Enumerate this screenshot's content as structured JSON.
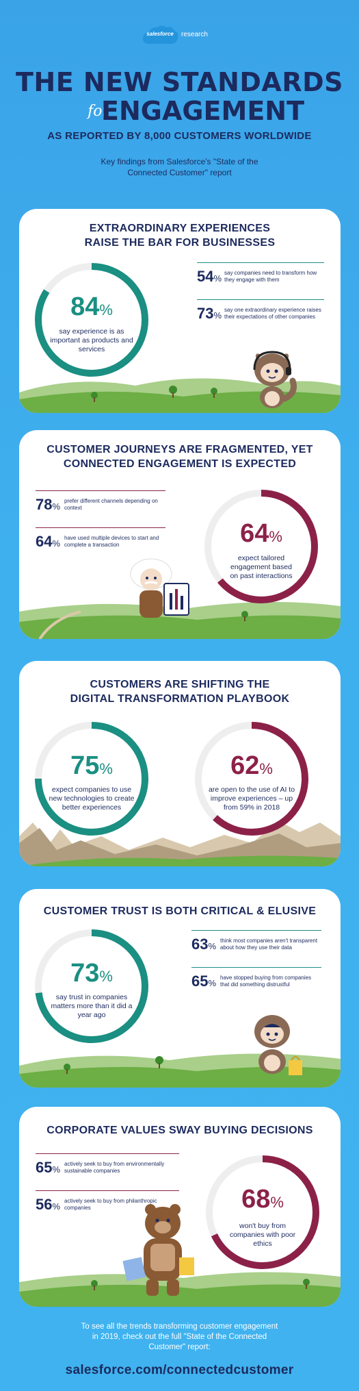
{
  "header": {
    "logo_brand": "salesforce",
    "logo_sub": "research",
    "title_line1": "THE NEW STANDARDS",
    "title_for": "for",
    "title_line2": "ENGAGEMENT",
    "subtitle": "AS REPORTED BY 8,000 CUSTOMERS WORLDWIDE",
    "intro": "Key findings from Salesforce's \"State of the Connected Customer\" report"
  },
  "colors": {
    "teal": "#1a8f82",
    "maroon": "#8c2148",
    "navy": "#1c2a5e",
    "sky": "#3fb0ee"
  },
  "sections": [
    {
      "title": "EXTRAORDINARY EXPERIENCES RAISE THE BAR FOR BUSINESSES",
      "ring": {
        "value": "84",
        "unit": "%",
        "fraction": 0.84,
        "color": "teal",
        "text": "say experience is as important as products and services"
      },
      "stats": [
        {
          "value": "54",
          "unit": "%",
          "text": "say companies need to transform how they engage with them"
        },
        {
          "value": "73",
          "unit": "%",
          "text": "say one extraordinary experience raises their expectations of other companies"
        }
      ]
    },
    {
      "title": "CUSTOMER JOURNEYS ARE FRAGMENTED, YET CONNECTED ENGAGEMENT IS EXPECTED",
      "ring": {
        "value": "64",
        "unit": "%",
        "fraction": 0.64,
        "color": "maroon",
        "text": "expect tailored engagement based on past interactions"
      },
      "stats": [
        {
          "value": "78",
          "unit": "%",
          "text": "prefer different channels depending on context"
        },
        {
          "value": "64",
          "unit": "%",
          "text": "have used multiple devices to start and complete a transaction"
        }
      ]
    },
    {
      "title": "CUSTOMERS ARE SHIFTING THE DIGITAL TRANSFORMATION PLAYBOOK",
      "rings": [
        {
          "value": "75",
          "unit": "%",
          "fraction": 0.75,
          "color": "teal",
          "text": "expect companies to use new technologies to create better experiences"
        },
        {
          "value": "62",
          "unit": "%",
          "fraction": 0.62,
          "color": "maroon",
          "text": "are open to the use of AI to improve experiences – up from 59% in 2018"
        }
      ]
    },
    {
      "title": "CUSTOMER TRUST IS BOTH CRITICAL & ELUSIVE",
      "ring": {
        "value": "73",
        "unit": "%",
        "fraction": 0.73,
        "color": "teal",
        "text": "say trust in companies matters more than it did a year ago"
      },
      "stats": [
        {
          "value": "63",
          "unit": "%",
          "text": "think most companies aren't transparent about how they use their data"
        },
        {
          "value": "65",
          "unit": "%",
          "text": "have stopped buying from companies that did something distrustful"
        }
      ]
    },
    {
      "title": "CORPORATE VALUES SWAY BUYING DECISIONS",
      "ring": {
        "value": "68",
        "unit": "%",
        "fraction": 0.68,
        "color": "maroon",
        "text": "won't buy from companies with poor ethics"
      },
      "stats": [
        {
          "value": "65",
          "unit": "%",
          "text": "actively seek to buy from environmentally sustainable companies"
        },
        {
          "value": "56",
          "unit": "%",
          "text": "actively seek to buy from philanthropic companies"
        }
      ]
    }
  ],
  "footer": {
    "text": "To see all the trends transforming customer engagement in 2019, check out the full \"State of the Connected Customer\" report:",
    "url": "salesforce.com/connectedcustomer"
  }
}
